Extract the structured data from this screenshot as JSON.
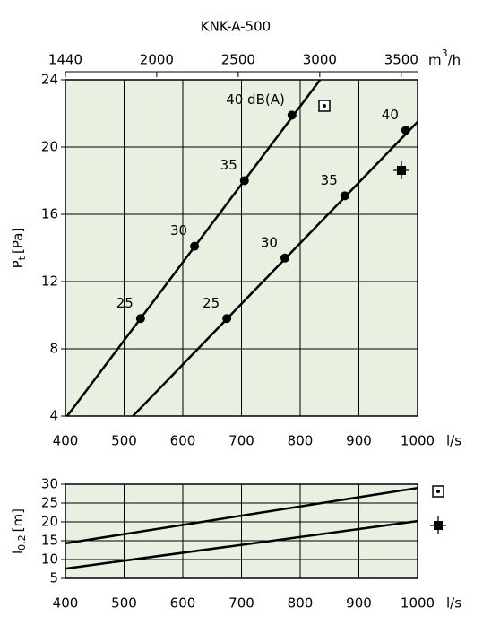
{
  "chart_data": [
    {
      "type": "line",
      "title": "KNK-A-500",
      "ylabel": {
        "main": "P",
        "sub": "t",
        "unit": "[Pa]"
      },
      "xlabel": "l/s",
      "x2label": {
        "main": "m",
        "sup": "3",
        "unit": "/h"
      },
      "xlim": [
        400,
        1000
      ],
      "xticks": [
        400,
        500,
        600,
        700,
        800,
        900,
        1000
      ],
      "x2lim": [
        1440,
        3600
      ],
      "x2ticks": [
        1440,
        2000,
        2500,
        3000,
        3500
      ],
      "ylim": [
        4,
        24
      ],
      "yticks": [
        4,
        8,
        12,
        16,
        20,
        24
      ],
      "grid": true,
      "series": [
        {
          "marker": "boxed-dot",
          "color": "#000000",
          "line_x": [
            403,
            834
          ],
          "line_y": [
            4,
            24
          ],
          "x": [
            528,
            620,
            705,
            786
          ],
          "values": [
            9.8,
            14.1,
            18.0,
            21.9
          ],
          "point_labels": [
            "25",
            "30",
            "35",
            "40 dB(A)"
          ]
        },
        {
          "marker": "cross-square",
          "color": "#000000",
          "line_x": [
            515,
            1000
          ],
          "line_y": [
            4,
            21.5
          ],
          "x": [
            675,
            774,
            876,
            980
          ],
          "values": [
            9.8,
            13.4,
            17.1,
            21.0
          ],
          "point_labels": [
            "25",
            "30",
            "35",
            "40"
          ]
        }
      ]
    },
    {
      "type": "line",
      "ylabel": {
        "main": "l",
        "sub": "0,2",
        "unit": "[m]"
      },
      "xlabel": "l/s",
      "xlim": [
        400,
        1000
      ],
      "xticks": [
        400,
        500,
        600,
        700,
        800,
        900,
        1000
      ],
      "ylim": [
        5,
        30
      ],
      "yticks": [
        5,
        10,
        15,
        20,
        25,
        30
      ],
      "grid": true,
      "series": [
        {
          "marker": "boxed-dot",
          "color": "#000000",
          "line_x": [
            400,
            1000
          ],
          "line_y": [
            14.3,
            29.0
          ]
        },
        {
          "marker": "cross-square",
          "color": "#000000",
          "line_x": [
            400,
            1000
          ],
          "line_y": [
            7.6,
            20.2
          ]
        }
      ]
    }
  ]
}
